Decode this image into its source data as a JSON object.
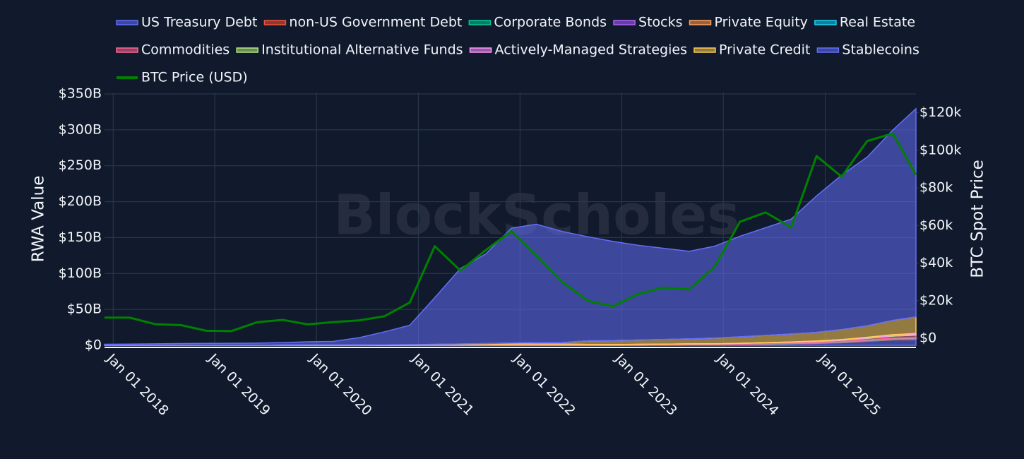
{
  "chart_data": {
    "type": "stacked-area",
    "watermark": "BlockScholes",
    "y_label": "RWA Value",
    "y2_label": "BTC Spot Price",
    "x": [
      "2017-12-01",
      "2018-03-01",
      "2018-06-01",
      "2018-09-01",
      "2018-12-01",
      "2019-03-01",
      "2019-06-01",
      "2019-09-01",
      "2019-12-01",
      "2020-03-01",
      "2020-06-01",
      "2020-09-01",
      "2020-12-01",
      "2021-03-01",
      "2021-06-01",
      "2021-09-01",
      "2021-12-01",
      "2022-03-01",
      "2022-06-01",
      "2022-09-01",
      "2022-12-01",
      "2023-03-01",
      "2023-06-01",
      "2023-09-01",
      "2023-12-01",
      "2024-03-01",
      "2024-06-01",
      "2024-09-01",
      "2024-12-01",
      "2025-03-01",
      "2025-06-01",
      "2025-09-01",
      "2025-11-23"
    ],
    "xlim": [
      "2017-12-01",
      "2025-11-23"
    ],
    "xticks": [
      {
        "value": "2018-01-01",
        "label": "Jan 01 2018"
      },
      {
        "value": "2019-01-01",
        "label": "Jan 01 2019"
      },
      {
        "value": "2020-01-01",
        "label": "Jan 01 2020"
      },
      {
        "value": "2021-01-01",
        "label": "Jan 01 2021"
      },
      {
        "value": "2022-01-01",
        "label": "Jan 01 2022"
      },
      {
        "value": "2023-01-01",
        "label": "Jan 01 2023"
      },
      {
        "value": "2024-01-01",
        "label": "Jan 01 2024"
      },
      {
        "value": "2025-01-01",
        "label": "Jan 01 2025"
      }
    ],
    "ylim": [
      -2,
      352
    ],
    "yticks": [
      {
        "value": 0,
        "label": "$0"
      },
      {
        "value": 50,
        "label": "$50B"
      },
      {
        "value": 100,
        "label": "$100B"
      },
      {
        "value": 150,
        "label": "$150B"
      },
      {
        "value": 200,
        "label": "$200B"
      },
      {
        "value": 250,
        "label": "$250B"
      },
      {
        "value": 300,
        "label": "$300B"
      },
      {
        "value": 350,
        "label": "$350B"
      }
    ],
    "y2lim": [
      -4500,
      130800
    ],
    "y2ticks": [
      {
        "value": 0,
        "label": "$0"
      },
      {
        "value": 20000,
        "label": "$20k"
      },
      {
        "value": 40000,
        "label": "$40k"
      },
      {
        "value": 60000,
        "label": "$60k"
      },
      {
        "value": 80000,
        "label": "$80k"
      },
      {
        "value": 100000,
        "label": "$100k"
      },
      {
        "value": 120000,
        "label": "$120k"
      }
    ],
    "grid": true,
    "series": [
      {
        "name": "US Treasury Debt",
        "color": "#636efa",
        "values": [
          0,
          0,
          0,
          0,
          0,
          0,
          0,
          0,
          0,
          0,
          0,
          0,
          0,
          0,
          0,
          0,
          0,
          0,
          0,
          0,
          0,
          0.1,
          0.3,
          0.6,
          0.8,
          1.0,
          1.4,
          2.0,
          2.5,
          3.5,
          5.5,
          7.5,
          8.0
        ]
      },
      {
        "name": "non-US Government Debt",
        "color": "#ef553b",
        "values": [
          0,
          0,
          0,
          0,
          0,
          0,
          0,
          0,
          0,
          0,
          0,
          0,
          0,
          0,
          0,
          0,
          0,
          0,
          0,
          0,
          0,
          0,
          0,
          0.1,
          0.1,
          0.2,
          0.2,
          0.3,
          0.4,
          0.5,
          0.6,
          0.7,
          0.8
        ]
      },
      {
        "name": "Corporate Bonds",
        "color": "#00cc96",
        "values": [
          0,
          0,
          0,
          0,
          0,
          0,
          0,
          0,
          0,
          0,
          0,
          0,
          0,
          0,
          0,
          0,
          0,
          0,
          0,
          0,
          0,
          0,
          0,
          0,
          0,
          0.1,
          0.2,
          0.2,
          0.3,
          0.3,
          0.4,
          0.5,
          0.5
        ]
      },
      {
        "name": "Stocks",
        "color": "#ab63fa",
        "values": [
          0,
          0,
          0,
          0,
          0,
          0,
          0,
          0,
          0,
          0,
          0,
          0,
          0,
          0,
          0,
          0,
          0,
          0,
          0,
          0,
          0,
          0,
          0,
          0,
          0,
          0,
          0,
          0,
          0.1,
          0.2,
          0.3,
          0.5,
          0.6
        ]
      },
      {
        "name": "Private Equity",
        "color": "#ffa15a",
        "values": [
          0,
          0,
          0,
          0,
          0,
          0,
          0,
          0,
          0,
          0,
          0,
          0,
          0,
          0,
          0,
          0,
          0,
          0,
          0,
          0,
          0,
          0,
          0,
          0,
          0,
          0,
          0.1,
          0.1,
          0.2,
          0.2,
          0.3,
          0.3,
          0.4
        ]
      },
      {
        "name": "Real Estate",
        "color": "#19d3f3",
        "values": [
          0,
          0,
          0,
          0,
          0,
          0,
          0,
          0,
          0,
          0,
          0,
          0,
          0,
          0,
          0,
          0,
          0,
          0,
          0,
          0,
          0.1,
          0.1,
          0.1,
          0.1,
          0.1,
          0.2,
          0.2,
          0.2,
          0.2,
          0.3,
          0.3,
          0.3,
          0.3
        ]
      },
      {
        "name": "Commodities",
        "color": "#ff6692",
        "values": [
          0.1,
          0.1,
          0.1,
          0.1,
          0.2,
          0.2,
          0.2,
          0.3,
          0.3,
          0.3,
          0.4,
          0.5,
          0.6,
          0.8,
          1.0,
          1.2,
          1.5,
          1.6,
          1.4,
          1.2,
          1.0,
          1.1,
          1.2,
          1.1,
          1.0,
          1.2,
          1.4,
          1.5,
          1.6,
          1.8,
          2.2,
          3.0,
          3.5
        ]
      },
      {
        "name": "Institutional Alternative Funds",
        "color": "#b6e880",
        "values": [
          0,
          0,
          0,
          0,
          0,
          0,
          0,
          0,
          0,
          0,
          0,
          0,
          0,
          0,
          0,
          0,
          0,
          0,
          0,
          0,
          0,
          0,
          0,
          0,
          0,
          0,
          0,
          0.1,
          0.2,
          0.3,
          0.5,
          0.7,
          0.8
        ]
      },
      {
        "name": "Actively-Managed Strategies",
        "color": "#ff97ff",
        "values": [
          0,
          0,
          0,
          0,
          0,
          0,
          0,
          0,
          0,
          0,
          0,
          0,
          0,
          0,
          0,
          0,
          0,
          0,
          0,
          0,
          0,
          0,
          0,
          0,
          0,
          0.1,
          0.2,
          0.3,
          0.5,
          0.8,
          1.0,
          1.2,
          1.5
        ]
      },
      {
        "name": "Private Credit",
        "color": "#fecb52",
        "values": [
          0,
          0,
          0,
          0,
          0,
          0,
          0,
          0,
          0.1,
          0.1,
          0.1,
          0.2,
          0.3,
          0.5,
          0.8,
          1.2,
          1.6,
          2.0,
          2.2,
          5.0,
          5.5,
          6.0,
          6.5,
          7.0,
          8.0,
          9.0,
          10.0,
          11.0,
          12.0,
          14.0,
          16.0,
          20.0,
          23.0
        ]
      },
      {
        "name": "Stablecoins",
        "color": "#636efa",
        "values": [
          1.4,
          1.6,
          2.0,
          2.3,
          2.5,
          2.6,
          2.8,
          3.5,
          4.5,
          5.0,
          10.0,
          18.0,
          27.0,
          65.0,
          105.0,
          125.0,
          160.0,
          165.0,
          155.0,
          145.0,
          138.0,
          132.0,
          127.0,
          122.0,
          128.0,
          140.0,
          150.0,
          160.0,
          190.0,
          215.0,
          235.0,
          265.0,
          290.0
        ]
      },
      {
        "name": "BTC Price (USD)",
        "color": "#008000",
        "axis": "y2",
        "type": "line",
        "values": [
          11000,
          11000,
          7500,
          7000,
          4000,
          3800,
          8500,
          9800,
          7400,
          8600,
          9500,
          11700,
          19000,
          49000,
          36000,
          47000,
          57000,
          44000,
          30000,
          20000,
          17000,
          23500,
          27000,
          26000,
          38000,
          62000,
          67000,
          59000,
          97000,
          86000,
          105000,
          109000,
          87000
        ]
      }
    ]
  }
}
